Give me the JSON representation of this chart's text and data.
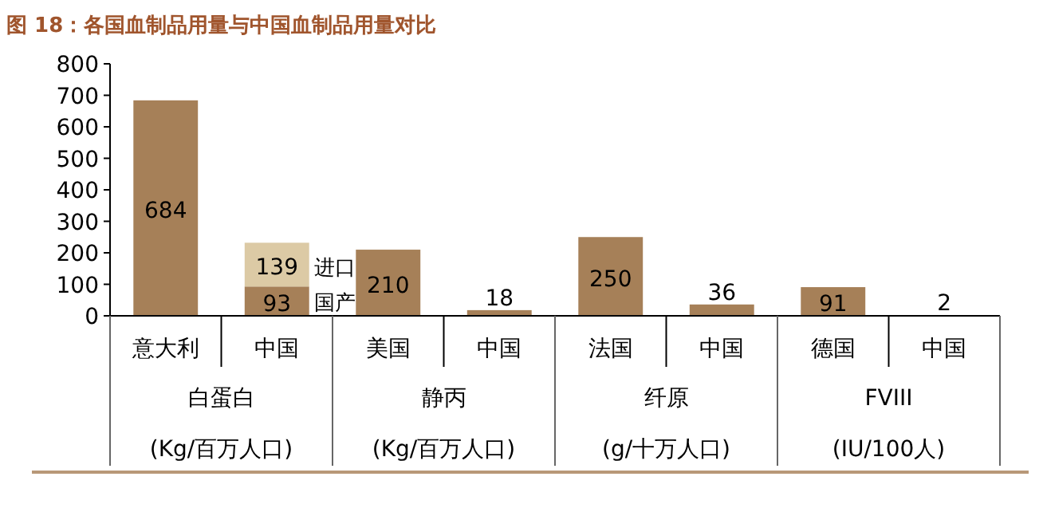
{
  "chart_data": {
    "type": "bar",
    "title": "图 18：各国血制品用量与中国血制品用量对比",
    "categories": [
      "意大利",
      "中国",
      "美国",
      "中国",
      "法国",
      "中国",
      "德国",
      "中国"
    ],
    "series": [
      {
        "name": "国产",
        "color": "#a68058",
        "values": [
          684,
          93,
          210,
          18,
          250,
          36,
          91,
          2
        ]
      },
      {
        "name": "进口",
        "color": "#dccaa5",
        "values": [
          null,
          139,
          null,
          null,
          null,
          null,
          null,
          null
        ]
      }
    ],
    "stacked": true,
    "data_labels": true,
    "ylim": [
      0,
      800
    ],
    "yticks": [
      0,
      100,
      200,
      300,
      400,
      500,
      600,
      700,
      800
    ],
    "annotations": [
      "白蛋白",
      "(Kg/百万人口)",
      "静丙",
      "(Kg/百万人口)",
      "纤原",
      "(g/十万人口)",
      "FVIII",
      "(IU/100人)"
    ]
  }
}
